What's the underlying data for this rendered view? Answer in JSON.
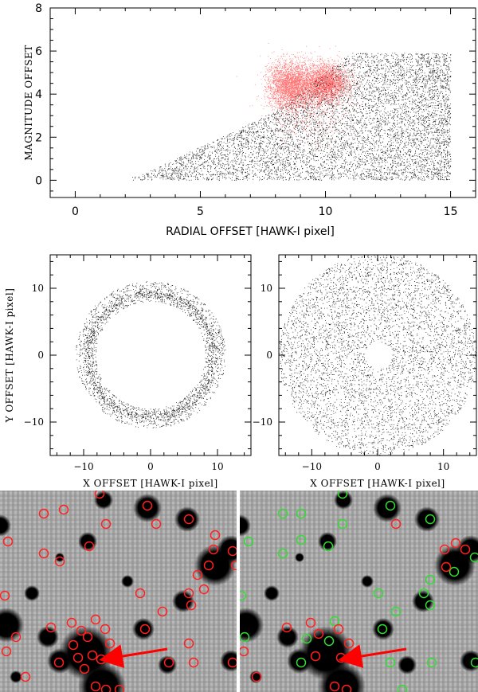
{
  "chart_data": [
    {
      "type": "scatter",
      "id": "radial-vs-magnitude",
      "xlabel": "RADIAL OFFSET [HAWK-I pixel]",
      "ylabel": "MAGNITUDE OFFSET",
      "xlim": [
        -1,
        16
      ],
      "ylim": [
        -0.8,
        8
      ],
      "xticks": [
        0,
        5,
        10,
        15
      ],
      "yticks": [
        0,
        2,
        4,
        6,
        8
      ],
      "series": [
        {
          "color": "#000000",
          "description_points": "uniform black points, x from 2.3 to 15, y from 0 up to an upper envelope rising to ~6"
        },
        {
          "color": "#ff0000",
          "description_points": "red clump with two peaks near x=8.5,y=4.5 and x=10,y=4.6"
        }
      ]
    },
    {
      "type": "scatter",
      "id": "xy-ring",
      "xlabel": "X OFFSET [HAWK-I pixel]",
      "ylabel": "Y OFFSET [HAWK-I pixel]",
      "xlim": [
        -15,
        15
      ],
      "ylim": [
        -15,
        15
      ],
      "xticks": [
        -10,
        0,
        10
      ],
      "yticks": [
        -10,
        0,
        10
      ],
      "ring_inner_radius": 8,
      "ring_outer_radius": 11
    },
    {
      "type": "scatter",
      "id": "xy-disk",
      "xlabel": "X OFFSET [HAWK-I pixel]",
      "ylabel": "",
      "xlim": [
        -15,
        15
      ],
      "ylim": [
        -15,
        15
      ],
      "xticks": [
        -10,
        0,
        10
      ],
      "yticks": [
        -10,
        0,
        10
      ],
      "disk_outer_radius": 15,
      "hole_radius": 2
    }
  ],
  "images": {
    "stars": [
      [
        8,
        785,
        22
      ],
      [
        60,
        800,
        14
      ],
      [
        75,
        830,
        16
      ],
      [
        108,
        820,
        34
      ],
      [
        128,
        862,
        30
      ],
      [
        180,
        790,
        14
      ],
      [
        230,
        755,
        14
      ],
      [
        270,
        710,
        26
      ],
      [
        290,
        690,
        18
      ],
      [
        210,
        835,
        12
      ],
      [
        185,
        638,
        18
      ],
      [
        235,
        652,
        16
      ],
      [
        130,
        628,
        12
      ],
      [
        110,
        680,
        12
      ],
      [
        40,
        745,
        10
      ],
      [
        290,
        830,
        14
      ],
      [
        0,
        660,
        14
      ],
      [
        20,
        850,
        8
      ],
      [
        75,
        700,
        6
      ],
      [
        160,
        730,
        8
      ]
    ],
    "left_red": [
      [
        10,
        680
      ],
      [
        55,
        645
      ],
      [
        80,
        640
      ],
      [
        125,
        620
      ],
      [
        133,
        658
      ],
      [
        112,
        686
      ],
      [
        55,
        695
      ],
      [
        75,
        705
      ],
      [
        185,
        635
      ],
      [
        237,
        652
      ],
      [
        196,
        658
      ],
      [
        270,
        672
      ],
      [
        268,
        690
      ],
      [
        262,
        710
      ],
      [
        248,
        722
      ],
      [
        292,
        692
      ],
      [
        237,
        745
      ],
      [
        256,
        740
      ],
      [
        240,
        760
      ],
      [
        176,
        745
      ],
      [
        204,
        768
      ],
      [
        6,
        748
      ],
      [
        64,
        788
      ],
      [
        90,
        782
      ],
      [
        102,
        792
      ],
      [
        120,
        778
      ],
      [
        110,
        800
      ],
      [
        132,
        790
      ],
      [
        138,
        808
      ],
      [
        116,
        823
      ],
      [
        92,
        810
      ],
      [
        98,
        826
      ],
      [
        127,
        828
      ],
      [
        106,
        840
      ],
      [
        182,
        790
      ],
      [
        237,
        808
      ],
      [
        20,
        800
      ],
      [
        8,
        818
      ],
      [
        32,
        850
      ],
      [
        74,
        832
      ],
      [
        120,
        862
      ],
      [
        133,
        866
      ],
      [
        150,
        866
      ],
      [
        212,
        832
      ],
      [
        243,
        832
      ],
      [
        292,
        832
      ],
      [
        296,
        710
      ]
    ],
    "right_green": [
      [
        355,
        645
      ],
      [
        378,
        645
      ],
      [
        430,
        620
      ],
      [
        430,
        658
      ],
      [
        412,
        686
      ],
      [
        355,
        695
      ],
      [
        378,
        678
      ],
      [
        490,
        635
      ],
      [
        540,
        652
      ],
      [
        570,
        718
      ],
      [
        596,
        700
      ],
      [
        540,
        728
      ],
      [
        532,
        745
      ],
      [
        475,
        745
      ],
      [
        540,
        760
      ],
      [
        497,
        768
      ],
      [
        413,
        805
      ],
      [
        480,
        790
      ],
      [
        385,
        802
      ],
      [
        420,
        780
      ],
      [
        307,
        800
      ],
      [
        312,
        680
      ],
      [
        303,
        748
      ],
      [
        378,
        832
      ],
      [
        490,
        832
      ],
      [
        542,
        832
      ],
      [
        505,
        866
      ],
      [
        597,
        832
      ]
    ],
    "right_red": [
      [
        497,
        658
      ],
      [
        572,
        682
      ],
      [
        558,
        690
      ],
      [
        584,
        690
      ],
      [
        360,
        788
      ],
      [
        390,
        782
      ],
      [
        400,
        796
      ],
      [
        425,
        790
      ],
      [
        438,
        808
      ],
      [
        428,
        826
      ],
      [
        396,
        824
      ],
      [
        420,
        862
      ],
      [
        435,
        866
      ],
      [
        322,
        850
      ],
      [
        306,
        818
      ],
      [
        560,
        712
      ]
    ],
    "arrow_left": {
      "x1": 210,
      "y1": 815,
      "x2": 142,
      "y2": 826
    },
    "arrow_right": {
      "x1": 510,
      "y1": 815,
      "x2": 442,
      "y2": 826
    }
  }
}
